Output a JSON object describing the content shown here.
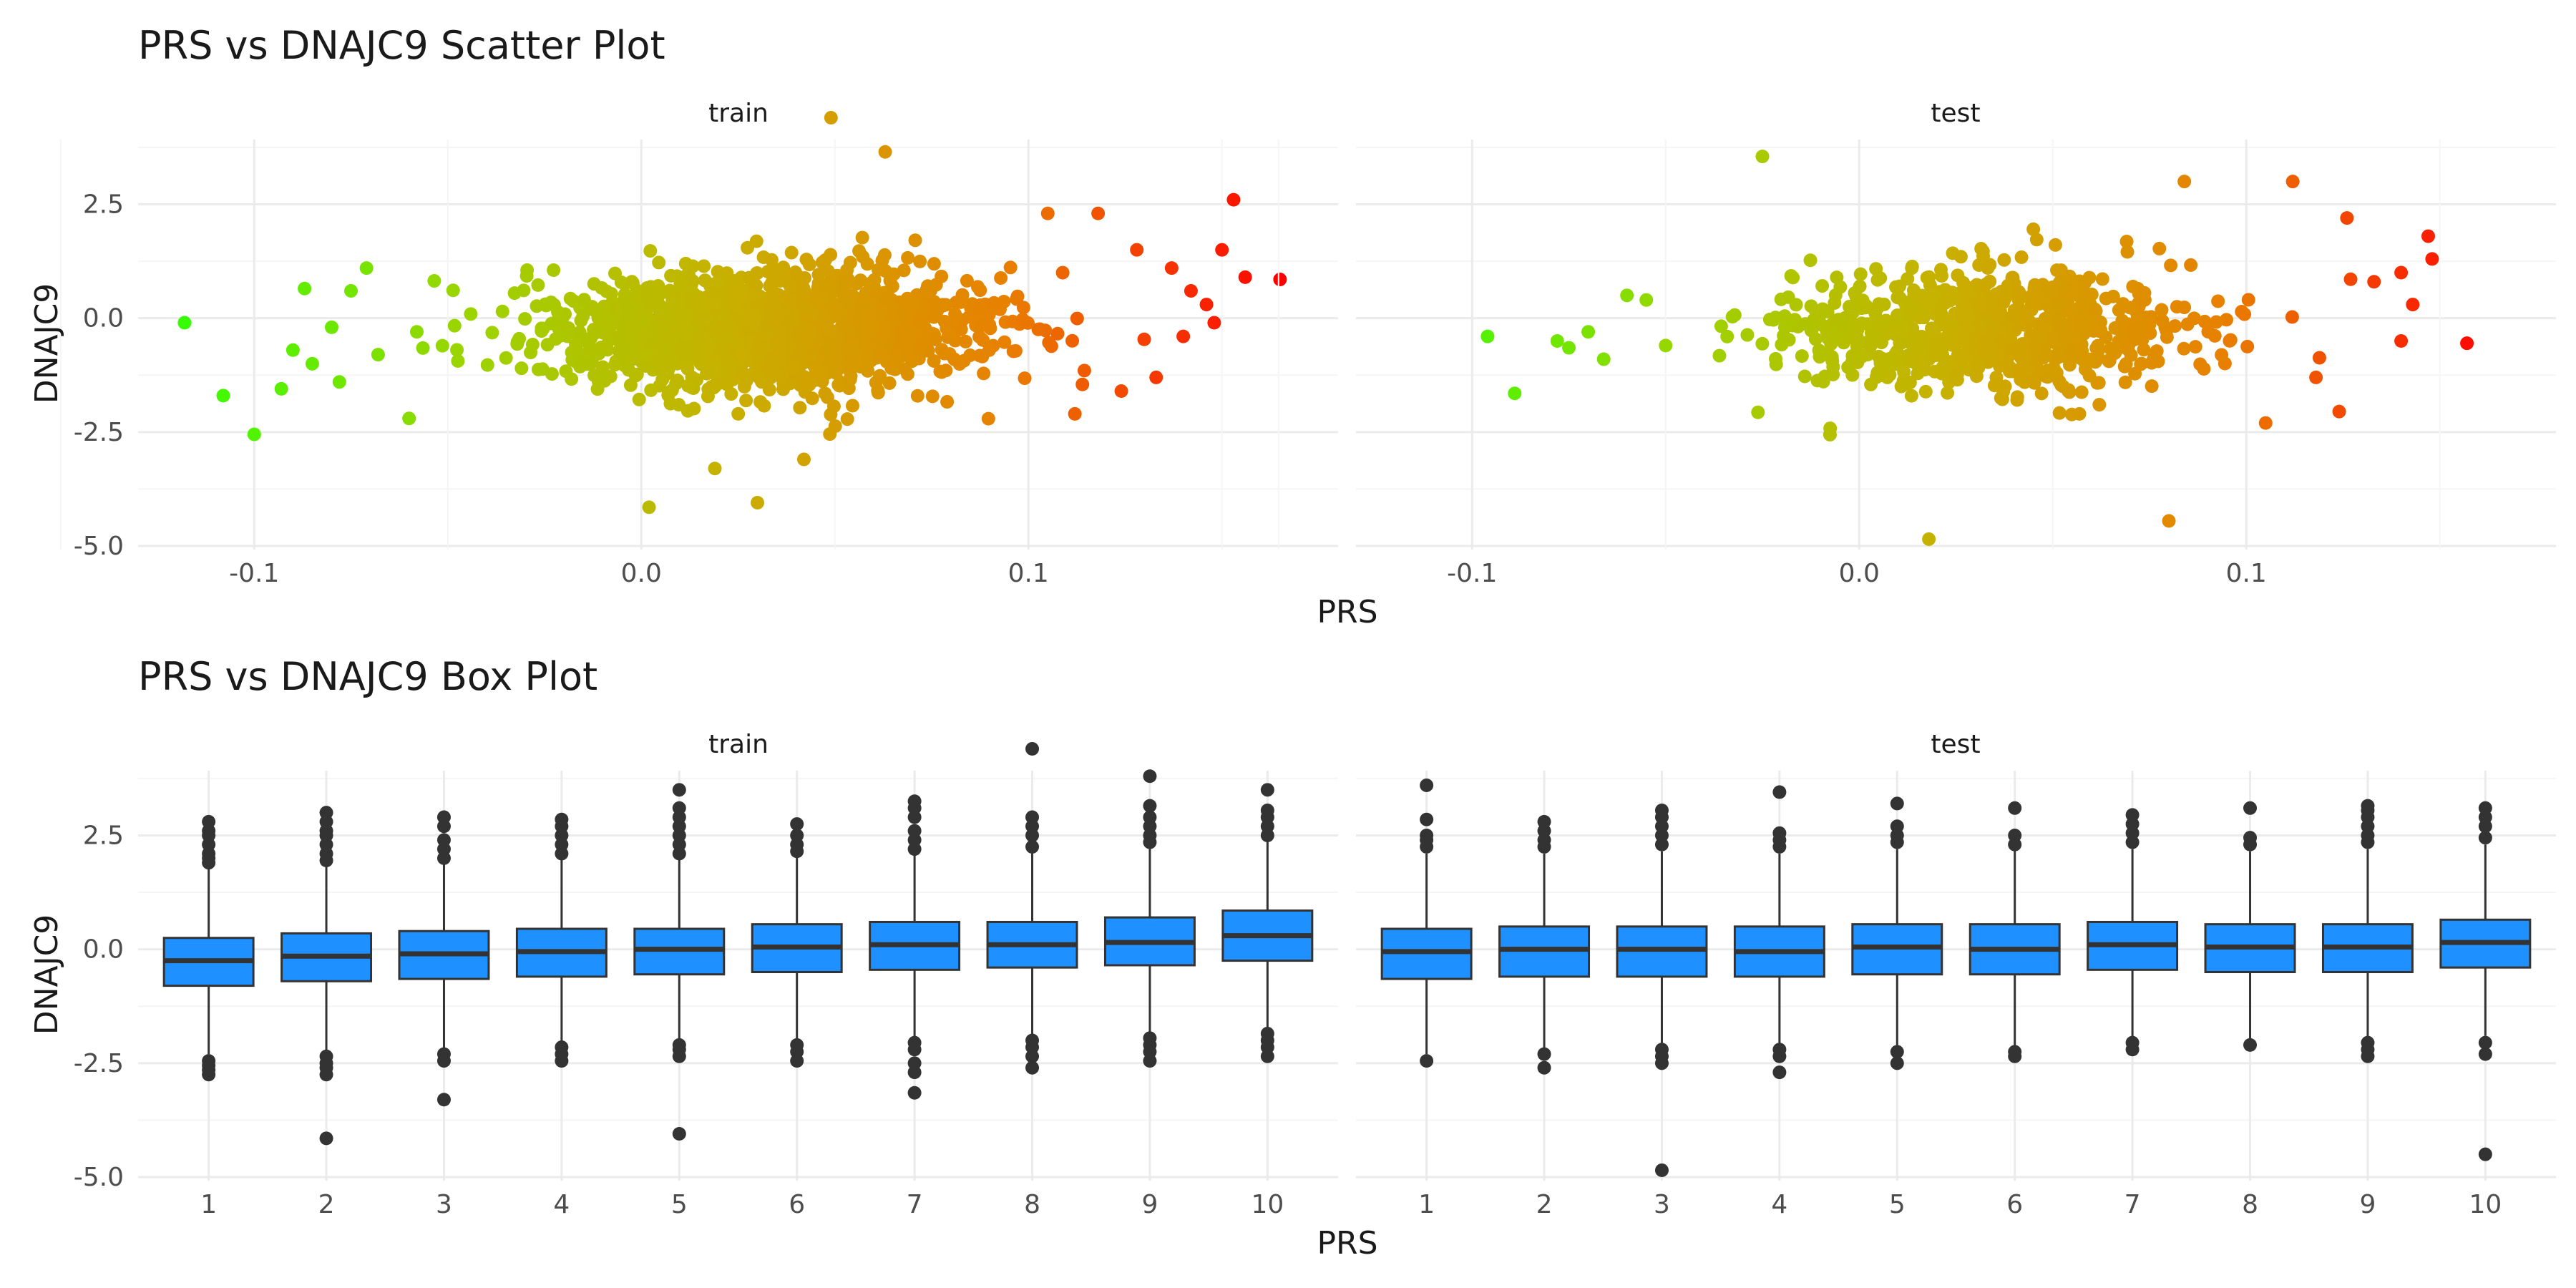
{
  "colors": {
    "grid_major": "#ebebeb",
    "grid_minor": "#f5f5f5",
    "box_fill": "#1e90ff",
    "box_line": "#333333",
    "outlier": "#333333",
    "gradient": [
      "#33ff00",
      "#99d600",
      "#c8b000",
      "#e88000",
      "#ff0000"
    ]
  },
  "chart_data": [
    {
      "type": "scatter",
      "title": "PRS vs DNAJC9 Scatter Plot",
      "xlabel": "PRS",
      "ylabel": "DNAJC9",
      "panels": [
        {
          "strip": "train",
          "xlim": [
            -0.13,
            0.18
          ],
          "ylim": [
            -5.0,
            4.0
          ],
          "xticks": [
            -0.1,
            0.0,
            0.1
          ],
          "xtick_labels": [
            "-0.1",
            "0.0",
            "0.1"
          ],
          "yticks": [
            -5.0,
            -2.5,
            0.0,
            2.5
          ],
          "ytick_labels": [
            "-5.0",
            "-2.5",
            "0.0",
            "2.5"
          ],
          "cloud": {
            "n": 1600,
            "x_center": 0.033,
            "x_sd": 0.028,
            "y_intercept": -0.25,
            "y_slope": 7.0,
            "y_sd": 0.55
          },
          "points": [
            {
              "x": -0.118,
              "y": -0.1
            },
            {
              "x": -0.108,
              "y": -1.7
            },
            {
              "x": -0.1,
              "y": -2.55
            },
            {
              "x": -0.093,
              "y": -1.55
            },
            {
              "x": -0.09,
              "y": -0.7
            },
            {
              "x": -0.087,
              "y": 0.65
            },
            {
              "x": -0.085,
              "y": -1.0
            },
            {
              "x": -0.08,
              "y": -0.2
            },
            {
              "x": -0.078,
              "y": -1.4
            },
            {
              "x": -0.075,
              "y": 0.6
            },
            {
              "x": -0.071,
              "y": 1.1
            },
            {
              "x": -0.068,
              "y": -0.8
            },
            {
              "x": -0.06,
              "y": -2.2
            },
            {
              "x": -0.058,
              "y": -0.3
            },
            {
              "x": 0.002,
              "y": -4.15
            },
            {
              "x": 0.03,
              "y": -4.05
            },
            {
              "x": 0.019,
              "y": -3.3
            },
            {
              "x": 0.049,
              "y": 4.4
            },
            {
              "x": 0.063,
              "y": 3.65
            },
            {
              "x": 0.042,
              "y": -3.1
            },
            {
              "x": 0.118,
              "y": 2.3
            },
            {
              "x": 0.128,
              "y": 1.5
            },
            {
              "x": 0.137,
              "y": 1.1
            },
            {
              "x": 0.142,
              "y": 0.6
            },
            {
              "x": 0.146,
              "y": 0.3
            },
            {
              "x": 0.15,
              "y": 1.5
            },
            {
              "x": 0.153,
              "y": 2.6
            },
            {
              "x": 0.156,
              "y": 0.9
            },
            {
              "x": 0.165,
              "y": 0.85
            },
            {
              "x": 0.148,
              "y": -0.1
            },
            {
              "x": 0.14,
              "y": -0.4
            },
            {
              "x": 0.133,
              "y": -1.3
            },
            {
              "x": 0.112,
              "y": -2.1
            },
            {
              "x": 0.124,
              "y": -1.6
            },
            {
              "x": 0.105,
              "y": 2.3
            }
          ]
        },
        {
          "strip": "test",
          "xlim": [
            -0.13,
            0.18
          ],
          "ylim": [
            -5.0,
            4.0
          ],
          "xticks": [
            -0.1,
            0.0,
            0.1
          ],
          "xtick_labels": [
            "-0.1",
            "0.0",
            "0.1"
          ],
          "yticks": [
            -5.0,
            -2.5,
            0.0,
            2.5
          ],
          "ytick_labels": [
            "-5.0",
            "-2.5",
            "0.0",
            "2.5"
          ],
          "cloud": {
            "n": 750,
            "x_center": 0.033,
            "x_sd": 0.028,
            "y_intercept": -0.25,
            "y_slope": 7.0,
            "y_sd": 0.55
          },
          "points": [
            {
              "x": -0.096,
              "y": -0.4
            },
            {
              "x": -0.089,
              "y": -1.65
            },
            {
              "x": -0.078,
              "y": -0.5
            },
            {
              "x": -0.075,
              "y": -0.65
            },
            {
              "x": -0.07,
              "y": -0.3
            },
            {
              "x": -0.066,
              "y": -0.9
            },
            {
              "x": -0.06,
              "y": 0.5
            },
            {
              "x": -0.055,
              "y": 0.4
            },
            {
              "x": -0.05,
              "y": -0.6
            },
            {
              "x": -0.025,
              "y": 3.55
            },
            {
              "x": 0.018,
              "y": -4.85
            },
            {
              "x": 0.08,
              "y": -4.45
            },
            {
              "x": 0.084,
              "y": 3.0
            },
            {
              "x": 0.112,
              "y": 3.0
            },
            {
              "x": 0.126,
              "y": 2.2
            },
            {
              "x": 0.133,
              "y": 0.8
            },
            {
              "x": 0.14,
              "y": 1.0
            },
            {
              "x": 0.143,
              "y": 0.3
            },
            {
              "x": 0.147,
              "y": 1.8
            },
            {
              "x": 0.148,
              "y": 1.3
            },
            {
              "x": 0.157,
              "y": -0.55
            },
            {
              "x": 0.14,
              "y": -0.5
            },
            {
              "x": 0.124,
              "y": -2.05
            },
            {
              "x": 0.118,
              "y": -1.3
            },
            {
              "x": 0.105,
              "y": -2.3
            }
          ]
        }
      ]
    },
    {
      "type": "box",
      "title": "PRS vs DNAJC9 Box Plot",
      "xlabel": "PRS",
      "ylabel": "DNAJC9",
      "panels": [
        {
          "strip": "train",
          "ylim": [
            -5.0,
            4.0
          ],
          "yticks": [
            -5.0,
            -2.5,
            0.0,
            2.5
          ],
          "ytick_labels": [
            "-5.0",
            "-2.5",
            "0.0",
            "2.5"
          ],
          "categories": [
            "1",
            "2",
            "3",
            "4",
            "5",
            "6",
            "7",
            "8",
            "9",
            "10"
          ],
          "boxes": [
            {
              "q1": -0.8,
              "median": -0.25,
              "q3": 0.25,
              "low": -2.3,
              "high": 1.8,
              "outliers": [
                1.9,
                2.0,
                2.1,
                2.3,
                2.5,
                2.6,
                2.8,
                -2.45,
                -2.55,
                -2.65,
                -2.75
              ]
            },
            {
              "q1": -0.7,
              "median": -0.15,
              "q3": 0.35,
              "low": -2.25,
              "high": 1.85,
              "outliers": [
                1.95,
                2.1,
                2.3,
                2.5,
                2.6,
                2.8,
                3.0,
                -2.35,
                -2.5,
                -2.6,
                -2.75,
                -4.15
              ]
            },
            {
              "q1": -0.65,
              "median": -0.1,
              "q3": 0.4,
              "low": -2.2,
              "high": 1.9,
              "outliers": [
                2.0,
                2.2,
                2.4,
                2.7,
                2.9,
                -2.3,
                -2.45,
                -3.3
              ]
            },
            {
              "q1": -0.6,
              "median": -0.05,
              "q3": 0.45,
              "low": -2.1,
              "high": 2.0,
              "outliers": [
                2.1,
                2.3,
                2.5,
                2.7,
                2.85,
                -2.15,
                -2.3,
                -2.45
              ]
            },
            {
              "q1": -0.55,
              "median": 0.0,
              "q3": 0.45,
              "low": -2.05,
              "high": 2.0,
              "outliers": [
                2.1,
                2.3,
                2.5,
                2.7,
                2.9,
                3.1,
                3.5,
                -2.1,
                -2.2,
                -2.35,
                -4.05
              ]
            },
            {
              "q1": -0.5,
              "median": 0.05,
              "q3": 0.55,
              "low": -2.0,
              "high": 2.05,
              "outliers": [
                2.15,
                2.3,
                2.5,
                2.75,
                -2.1,
                -2.25,
                -2.45
              ]
            },
            {
              "q1": -0.45,
              "median": 0.1,
              "q3": 0.6,
              "low": -1.95,
              "high": 2.1,
              "outliers": [
                2.2,
                2.4,
                2.6,
                2.9,
                3.1,
                3.25,
                -2.05,
                -2.2,
                -2.5,
                -2.7,
                -3.15
              ]
            },
            {
              "q1": -0.4,
              "median": 0.1,
              "q3": 0.6,
              "low": -1.9,
              "high": 2.15,
              "outliers": [
                2.25,
                2.5,
                2.7,
                2.9,
                4.4,
                -2.0,
                -2.15,
                -2.35,
                -2.6
              ]
            },
            {
              "q1": -0.35,
              "median": 0.15,
              "q3": 0.7,
              "low": -1.9,
              "high": 2.25,
              "outliers": [
                2.35,
                2.5,
                2.7,
                2.9,
                3.15,
                3.8,
                -1.95,
                -2.1,
                -2.25,
                -2.45
              ]
            },
            {
              "q1": -0.25,
              "median": 0.3,
              "q3": 0.85,
              "low": -1.8,
              "high": 2.4,
              "outliers": [
                2.5,
                2.7,
                2.9,
                3.05,
                3.5,
                -1.85,
                -2.0,
                -2.15,
                -2.35
              ]
            }
          ]
        },
        {
          "strip": "test",
          "ylim": [
            -5.0,
            4.0
          ],
          "yticks": [
            -5.0,
            -2.5,
            0.0,
            2.5
          ],
          "ytick_labels": [
            "-5.0",
            "-2.5",
            "0.0",
            "2.5"
          ],
          "categories": [
            "1",
            "2",
            "3",
            "4",
            "5",
            "6",
            "7",
            "8",
            "9",
            "10"
          ],
          "boxes": [
            {
              "q1": -0.65,
              "median": -0.05,
              "q3": 0.45,
              "low": -2.3,
              "high": 2.1,
              "outliers": [
                2.25,
                2.4,
                2.5,
                2.85,
                3.6,
                -2.45
              ]
            },
            {
              "q1": -0.6,
              "median": 0.0,
              "q3": 0.5,
              "low": -2.2,
              "high": 2.1,
              "outliers": [
                2.25,
                2.4,
                2.6,
                2.8,
                -2.3,
                -2.6
              ]
            },
            {
              "q1": -0.6,
              "median": 0.0,
              "q3": 0.5,
              "low": -2.1,
              "high": 2.15,
              "outliers": [
                2.3,
                2.5,
                2.7,
                2.9,
                3.05,
                -2.2,
                -2.35,
                -2.5,
                -4.85
              ]
            },
            {
              "q1": -0.6,
              "median": -0.05,
              "q3": 0.5,
              "low": -2.1,
              "high": 2.1,
              "outliers": [
                2.25,
                2.4,
                2.55,
                3.45,
                -2.2,
                -2.35,
                -2.7
              ]
            },
            {
              "q1": -0.55,
              "median": 0.05,
              "q3": 0.55,
              "low": -2.1,
              "high": 2.2,
              "outliers": [
                2.35,
                2.5,
                2.7,
                3.2,
                -2.25,
                -2.5
              ]
            },
            {
              "q1": -0.55,
              "median": 0.0,
              "q3": 0.55,
              "low": -2.15,
              "high": 2.2,
              "outliers": [
                2.3,
                2.5,
                3.1,
                -2.25,
                -2.35
              ]
            },
            {
              "q1": -0.45,
              "median": 0.1,
              "q3": 0.6,
              "low": -1.95,
              "high": 2.2,
              "outliers": [
                2.35,
                2.55,
                2.75,
                2.95,
                -2.05,
                -2.2
              ]
            },
            {
              "q1": -0.5,
              "median": 0.05,
              "q3": 0.55,
              "low": -2.0,
              "high": 2.15,
              "outliers": [
                2.3,
                2.45,
                3.1,
                -2.1
              ]
            },
            {
              "q1": -0.5,
              "median": 0.05,
              "q3": 0.55,
              "low": -2.0,
              "high": 2.2,
              "outliers": [
                2.35,
                2.5,
                2.7,
                2.9,
                3.05,
                3.15,
                -2.05,
                -2.2,
                -2.35
              ]
            },
            {
              "q1": -0.4,
              "median": 0.15,
              "q3": 0.65,
              "low": -1.9,
              "high": 2.3,
              "outliers": [
                2.45,
                2.7,
                2.9,
                3.1,
                -2.05,
                -2.3,
                -4.5
              ]
            }
          ]
        }
      ]
    }
  ]
}
